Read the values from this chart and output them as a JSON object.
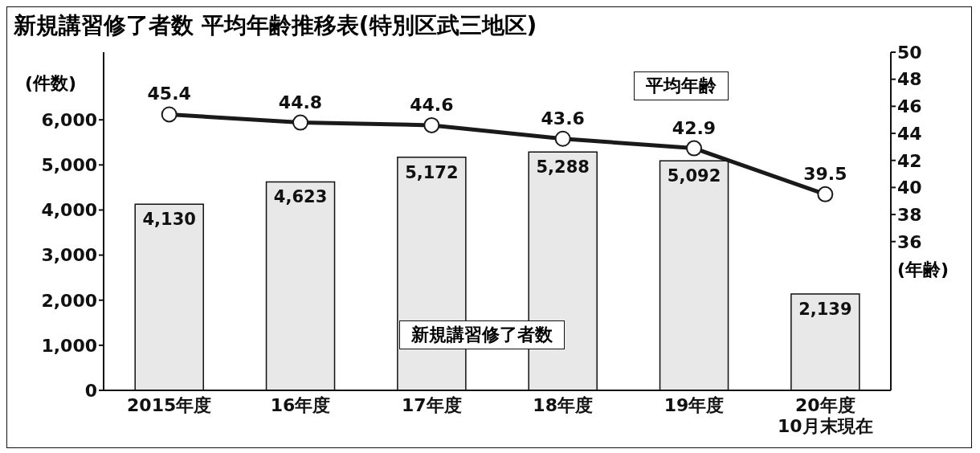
{
  "chart_data": {
    "type": "bar",
    "title": "新規講習修了者数 平均年齢推移表(特別区武三地区)",
    "ylabel": "(件数)",
    "y2label": "(年齢)",
    "categories": [
      "2015年度",
      "16年度",
      "17年度",
      "18年度",
      "19年度",
      "20年度\n10月末現在"
    ],
    "series": [
      {
        "name": "新規講習修了者数",
        "color": "#e8e8e8",
        "values": [
          4130,
          4623,
          5172,
          5288,
          5092,
          2139
        ],
        "value_labels": [
          "4,130",
          "4,623",
          "5,172",
          "5,288",
          "5,092",
          "2,139"
        ]
      },
      {
        "name": "平均年齢",
        "type": "line",
        "axis": "y2",
        "color": "#1a1a1a",
        "values": [
          45.4,
          44.8,
          44.6,
          43.6,
          42.9,
          39.5
        ],
        "value_labels": [
          "45.4",
          "44.8",
          "44.6",
          "43.6",
          "42.9",
          "39.5"
        ]
      }
    ],
    "ylim": [
      0,
      7500
    ],
    "yticks": [
      {
        "value": 0,
        "label": "0"
      },
      {
        "value": 1000,
        "label": "1,000"
      },
      {
        "value": 2000,
        "label": "2,000"
      },
      {
        "value": 3000,
        "label": "3,000"
      },
      {
        "value": 4000,
        "label": "4,000"
      },
      {
        "value": 5000,
        "label": "5,000"
      },
      {
        "value": 6000,
        "label": "6,000"
      }
    ],
    "y2lim": [
      25,
      50
    ],
    "y2ticks": [
      36,
      38,
      40,
      42,
      44,
      46,
      48,
      50
    ],
    "grid": false,
    "legend": false,
    "marker": "circle",
    "line_style": "solid"
  }
}
